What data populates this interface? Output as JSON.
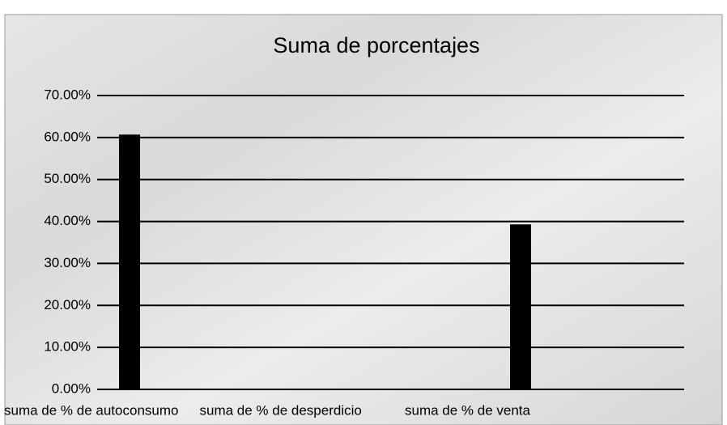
{
  "chart_data": {
    "type": "bar",
    "title": "Suma de porcentajes",
    "categories": [
      "suma de % de autoconsumo",
      "suma de % de desperdicio",
      "suma de % de venta"
    ],
    "values": [
      60.7,
      0,
      39.3
    ],
    "color": "#000000",
    "ylim": [
      0,
      70
    ],
    "yticks": [
      {
        "value": 0,
        "label": "0.00%"
      },
      {
        "value": 10,
        "label": "10.00%"
      },
      {
        "value": 20,
        "label": "20.00%"
      },
      {
        "value": 30,
        "label": "30.00%"
      },
      {
        "value": 40,
        "label": "40.00%"
      },
      {
        "value": 50,
        "label": "50.00%"
      },
      {
        "value": 60,
        "label": "60.00%"
      },
      {
        "value": 70,
        "label": "70.00%"
      }
    ],
    "grid": true
  }
}
